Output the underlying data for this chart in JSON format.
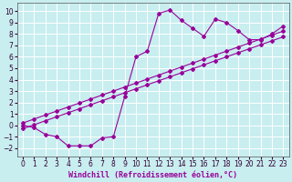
{
  "xlabel": "Windchill (Refroidissement éolien,°C)",
  "bg_color": "#c8eef0",
  "grid_color": "#ffffff",
  "line_color": "#990099",
  "xlim": [
    -0.5,
    23.5
  ],
  "ylim": [
    -2.7,
    10.7
  ],
  "xticks": [
    0,
    1,
    2,
    3,
    4,
    5,
    6,
    7,
    8,
    9,
    10,
    11,
    12,
    13,
    14,
    15,
    16,
    17,
    18,
    19,
    20,
    21,
    22,
    23
  ],
  "yticks": [
    -2,
    -1,
    0,
    1,
    2,
    3,
    4,
    5,
    6,
    7,
    8,
    9,
    10
  ],
  "zigzag_x": [
    0,
    1,
    2,
    3,
    4,
    5,
    6,
    7,
    8,
    9,
    10,
    11,
    12,
    13,
    14,
    15,
    16,
    17,
    18,
    19,
    20,
    21,
    22,
    23
  ],
  "zigzag_y": [
    0.0,
    -0.2,
    -0.8,
    -1.0,
    -1.8,
    -1.8,
    -1.8,
    -1.1,
    -1.0,
    2.5,
    6.0,
    6.5,
    9.8,
    10.1,
    9.2,
    8.5,
    7.8,
    9.3,
    9.0,
    8.3,
    7.5,
    7.5,
    8.0,
    8.7
  ],
  "diag1_x": [
    0,
    1,
    2,
    3,
    4,
    5,
    6,
    7,
    8,
    9,
    10,
    11,
    12,
    13,
    14,
    15,
    16,
    17,
    18,
    19,
    20,
    21,
    22,
    23
  ],
  "diag1_y": [
    -0.3,
    0.05,
    0.4,
    0.75,
    1.1,
    1.45,
    1.8,
    2.15,
    2.5,
    2.85,
    3.2,
    3.55,
    3.9,
    4.25,
    4.6,
    4.95,
    5.3,
    5.65,
    6.0,
    6.35,
    6.7,
    7.05,
    7.4,
    7.75
  ],
  "diag2_x": [
    0,
    1,
    2,
    3,
    4,
    5,
    6,
    7,
    8,
    9,
    10,
    11,
    12,
    13,
    14,
    15,
    16,
    17,
    18,
    19,
    20,
    21,
    22,
    23
  ],
  "diag2_y": [
    0.2,
    0.55,
    0.9,
    1.25,
    1.6,
    1.95,
    2.3,
    2.65,
    3.0,
    3.35,
    3.7,
    4.05,
    4.4,
    4.75,
    5.1,
    5.45,
    5.8,
    6.15,
    6.5,
    6.85,
    7.2,
    7.55,
    7.9,
    8.25
  ],
  "xlabel_fontsize": 6,
  "tick_fontsize": 5.5
}
